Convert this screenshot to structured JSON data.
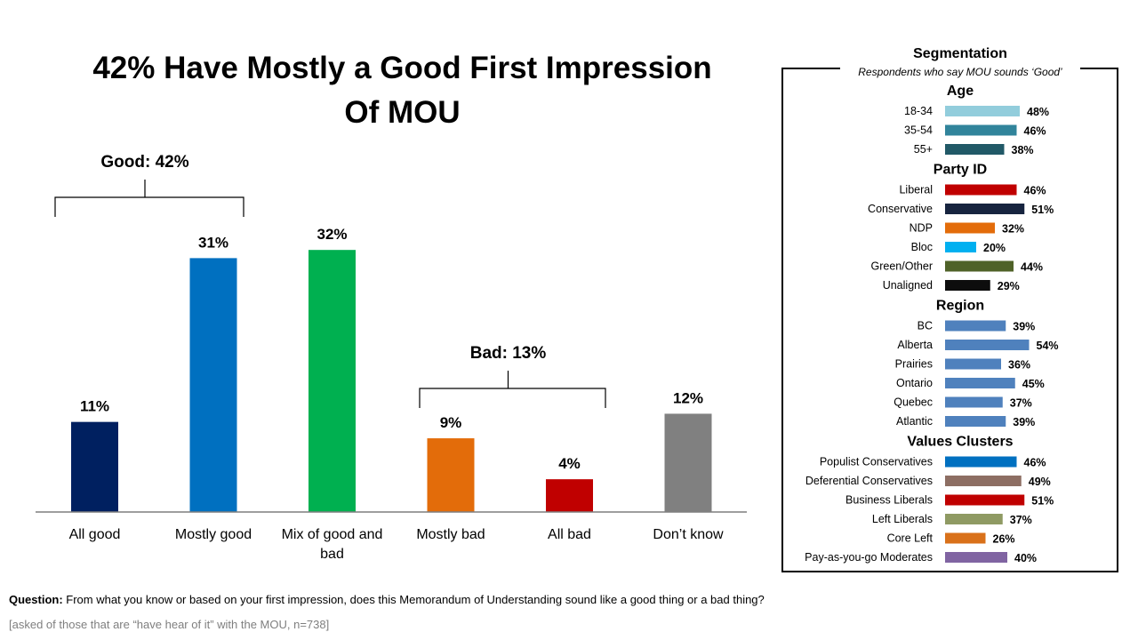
{
  "title": "42% Have Mostly a Good First Impression Of MOU",
  "chart_data": [
    {
      "type": "bar",
      "title": "42% Have Mostly a Good First Impression Of MOU",
      "categories": [
        "All good",
        "Mostly good",
        "Mix of good and bad",
        "Mostly bad",
        "All bad",
        "Don’t know"
      ],
      "values": [
        11,
        31,
        32,
        9,
        4,
        12
      ],
      "labels": [
        "11%",
        "31%",
        "32%",
        "9%",
        "4%",
        "12%"
      ],
      "colors": [
        "#002060",
        "#0070C0",
        "#00B050",
        "#E36C0A",
        "#C00000",
        "#808080"
      ],
      "ylim": [
        0,
        40
      ],
      "grid": false,
      "annotations": [
        {
          "text": "Good: 42%",
          "spans": [
            0,
            1
          ]
        },
        {
          "text": "Bad: 13%",
          "spans": [
            3,
            4
          ]
        }
      ]
    },
    {
      "type": "bar",
      "orientation": "horizontal",
      "title": "Segmentation",
      "subtitle": "Respondents who say MOU sounds ‘Good’",
      "xlim": [
        0,
        100
      ],
      "groups": [
        {
          "name": "Age",
          "items": [
            {
              "label": "18-34",
              "value": 48,
              "color": "#92CDDC"
            },
            {
              "label": "35-54",
              "value": 46,
              "color": "#31849B"
            },
            {
              "label": "55+",
              "value": 38,
              "color": "#215967"
            }
          ]
        },
        {
          "name": "Party ID",
          "items": [
            {
              "label": "Liberal",
              "value": 46,
              "color": "#C00000"
            },
            {
              "label": "Conservative",
              "value": 51,
              "color": "#17243F"
            },
            {
              "label": "NDP",
              "value": 32,
              "color": "#E36C0A"
            },
            {
              "label": "Bloc",
              "value": 20,
              "color": "#00B0F0"
            },
            {
              "label": "Green/Other",
              "value": 44,
              "color": "#4F6228"
            },
            {
              "label": "Unaligned",
              "value": 29,
              "color": "#0D0D0D"
            }
          ]
        },
        {
          "name": "Region",
          "items": [
            {
              "label": "BC",
              "value": 39,
              "color": "#4F81BD"
            },
            {
              "label": "Alberta",
              "value": 54,
              "color": "#4F81BD"
            },
            {
              "label": "Prairies",
              "value": 36,
              "color": "#4F81BD"
            },
            {
              "label": "Ontario",
              "value": 45,
              "color": "#4F81BD"
            },
            {
              "label": "Quebec",
              "value": 37,
              "color": "#4F81BD"
            },
            {
              "label": "Atlantic",
              "value": 39,
              "color": "#4F81BD"
            }
          ]
        },
        {
          "name": "Values Clusters",
          "items": [
            {
              "label": "Populist Conservatives",
              "value": 46,
              "color": "#0070C0"
            },
            {
              "label": "Deferential Conservatives",
              "value": 49,
              "color": "#8D6E63"
            },
            {
              "label": "Business Liberals",
              "value": 51,
              "color": "#C00000"
            },
            {
              "label": "Left Liberals",
              "value": 37,
              "color": "#8F9A63"
            },
            {
              "label": "Core Left",
              "value": 26,
              "color": "#D9711A"
            },
            {
              "label": "Pay-as-you-go Moderates",
              "value": 40,
              "color": "#8064A2"
            }
          ]
        }
      ]
    }
  ],
  "footer": {
    "question_label": "Question:",
    "question_text": " From what you know or based on your first impression, does this Memorandum of Understanding sound like a good thing or a bad thing?",
    "note": "[asked of those that are “have hear of it” with the MOU, n=738]"
  }
}
